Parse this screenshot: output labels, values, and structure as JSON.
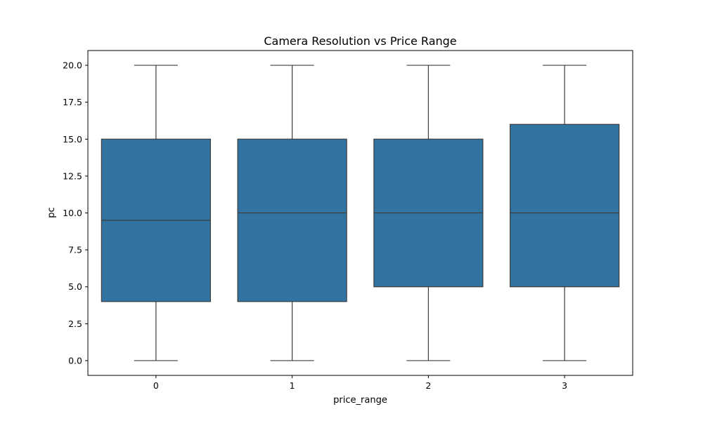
{
  "chart_data": {
    "type": "box",
    "title": "Camera Resolution vs Price Range",
    "xlabel": "price_range",
    "ylabel": "pc",
    "categories": [
      "0",
      "1",
      "2",
      "3"
    ],
    "boxes": [
      {
        "category": "0",
        "whisker_low": 0,
        "q1": 4,
        "median": 9.5,
        "q3": 15,
        "whisker_high": 20
      },
      {
        "category": "1",
        "whisker_low": 0,
        "q1": 4,
        "median": 10,
        "q3": 15,
        "whisker_high": 20
      },
      {
        "category": "2",
        "whisker_low": 0,
        "q1": 5,
        "median": 10,
        "q3": 15,
        "whisker_high": 20
      },
      {
        "category": "3",
        "whisker_low": 0,
        "q1": 5,
        "median": 10,
        "q3": 16,
        "whisker_high": 20
      }
    ],
    "ylim": [
      -1,
      21
    ],
    "yticks": [
      0.0,
      2.5,
      5.0,
      7.5,
      10.0,
      12.5,
      15.0,
      17.5,
      20.0
    ],
    "ytick_labels": [
      "0.0",
      "2.5",
      "5.0",
      "7.5",
      "10.0",
      "12.5",
      "15.0",
      "17.5",
      "20.0"
    ],
    "grid": false,
    "colors": {
      "box_fill": "#3274a1",
      "line": "#3d3d3d",
      "axis": "#000000"
    }
  }
}
